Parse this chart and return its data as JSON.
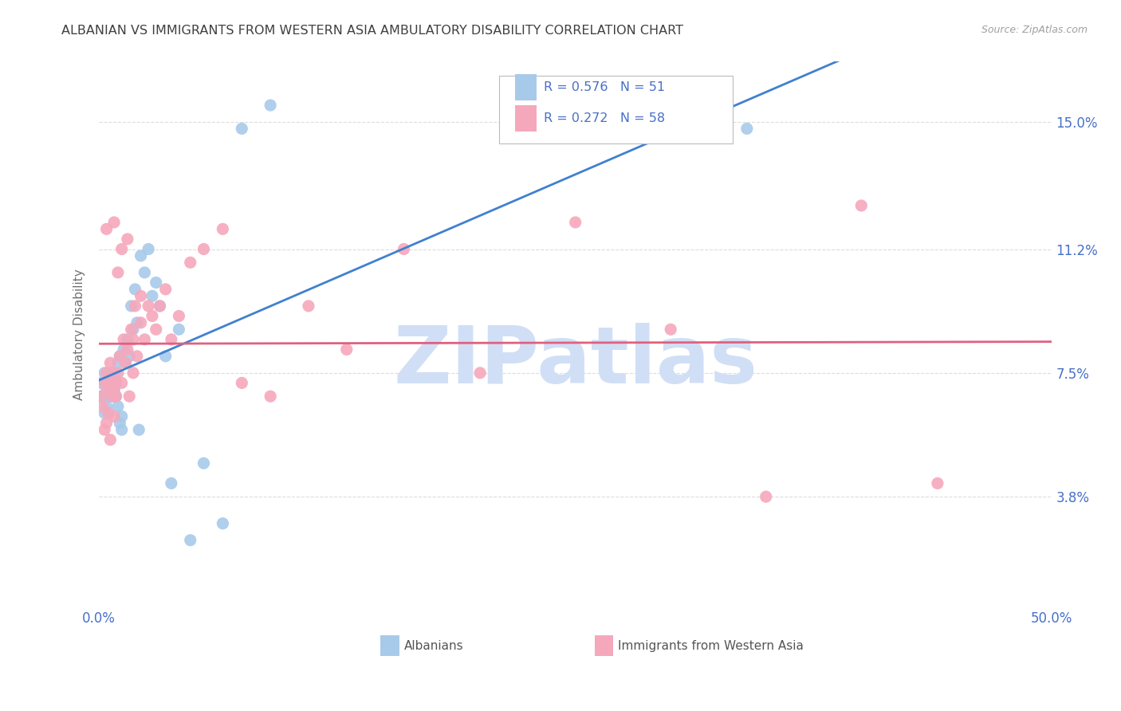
{
  "title": "ALBANIAN VS IMMIGRANTS FROM WESTERN ASIA AMBULATORY DISABILITY CORRELATION CHART",
  "source": "Source: ZipAtlas.com",
  "ylabel": "Ambulatory Disability",
  "ytick_labels": [
    "15.0%",
    "11.2%",
    "7.5%",
    "3.8%"
  ],
  "ytick_values": [
    0.15,
    0.112,
    0.075,
    0.038
  ],
  "xmin": 0.0,
  "xmax": 0.5,
  "ymin": 0.005,
  "ymax": 0.168,
  "legend_label_blue": "Albanians",
  "legend_label_pink": "Immigrants from Western Asia",
  "blue_color": "#A8CAEA",
  "pink_color": "#F5A8BC",
  "line_blue": "#4080D0",
  "line_pink": "#E06080",
  "watermark": "ZIPatlas",
  "watermark_color": "#D0DFF5",
  "title_color": "#404040",
  "axis_label_color": "#4870C8",
  "grid_color": "#DCDCDC",
  "background_color": "#FFFFFF",
  "albanians_x": [
    0.001,
    0.002,
    0.003,
    0.003,
    0.004,
    0.004,
    0.005,
    0.005,
    0.005,
    0.006,
    0.006,
    0.006,
    0.007,
    0.007,
    0.007,
    0.008,
    0.008,
    0.008,
    0.009,
    0.009,
    0.01,
    0.01,
    0.011,
    0.011,
    0.012,
    0.012,
    0.013,
    0.014,
    0.015,
    0.016,
    0.017,
    0.018,
    0.019,
    0.02,
    0.021,
    0.022,
    0.024,
    0.026,
    0.028,
    0.03,
    0.032,
    0.035,
    0.038,
    0.042,
    0.048,
    0.055,
    0.065,
    0.075,
    0.09,
    0.32,
    0.34
  ],
  "albanians_y": [
    0.072,
    0.068,
    0.075,
    0.063,
    0.07,
    0.065,
    0.071,
    0.068,
    0.073,
    0.069,
    0.072,
    0.075,
    0.071,
    0.074,
    0.068,
    0.073,
    0.07,
    0.075,
    0.072,
    0.068,
    0.078,
    0.065,
    0.08,
    0.06,
    0.058,
    0.062,
    0.082,
    0.078,
    0.085,
    0.08,
    0.095,
    0.088,
    0.1,
    0.09,
    0.058,
    0.11,
    0.105,
    0.112,
    0.098,
    0.102,
    0.095,
    0.08,
    0.042,
    0.088,
    0.025,
    0.048,
    0.03,
    0.148,
    0.155,
    0.15,
    0.148
  ],
  "western_asia_x": [
    0.001,
    0.002,
    0.003,
    0.003,
    0.004,
    0.004,
    0.005,
    0.005,
    0.006,
    0.006,
    0.007,
    0.007,
    0.008,
    0.008,
    0.009,
    0.009,
    0.01,
    0.011,
    0.012,
    0.013,
    0.014,
    0.015,
    0.016,
    0.017,
    0.018,
    0.019,
    0.02,
    0.022,
    0.024,
    0.026,
    0.028,
    0.03,
    0.032,
    0.035,
    0.038,
    0.042,
    0.048,
    0.055,
    0.065,
    0.075,
    0.09,
    0.11,
    0.13,
    0.16,
    0.2,
    0.25,
    0.3,
    0.35,
    0.4,
    0.44,
    0.012,
    0.015,
    0.018,
    0.022,
    0.008,
    0.01,
    0.006,
    0.004
  ],
  "western_asia_y": [
    0.068,
    0.065,
    0.072,
    0.058,
    0.075,
    0.06,
    0.07,
    0.063,
    0.072,
    0.055,
    0.068,
    0.075,
    0.07,
    0.062,
    0.072,
    0.068,
    0.075,
    0.08,
    0.072,
    0.085,
    0.078,
    0.082,
    0.068,
    0.088,
    0.075,
    0.095,
    0.08,
    0.09,
    0.085,
    0.095,
    0.092,
    0.088,
    0.095,
    0.1,
    0.085,
    0.092,
    0.108,
    0.112,
    0.118,
    0.072,
    0.068,
    0.095,
    0.082,
    0.112,
    0.075,
    0.12,
    0.088,
    0.038,
    0.125,
    0.042,
    0.112,
    0.115,
    0.085,
    0.098,
    0.12,
    0.105,
    0.078,
    0.118
  ]
}
